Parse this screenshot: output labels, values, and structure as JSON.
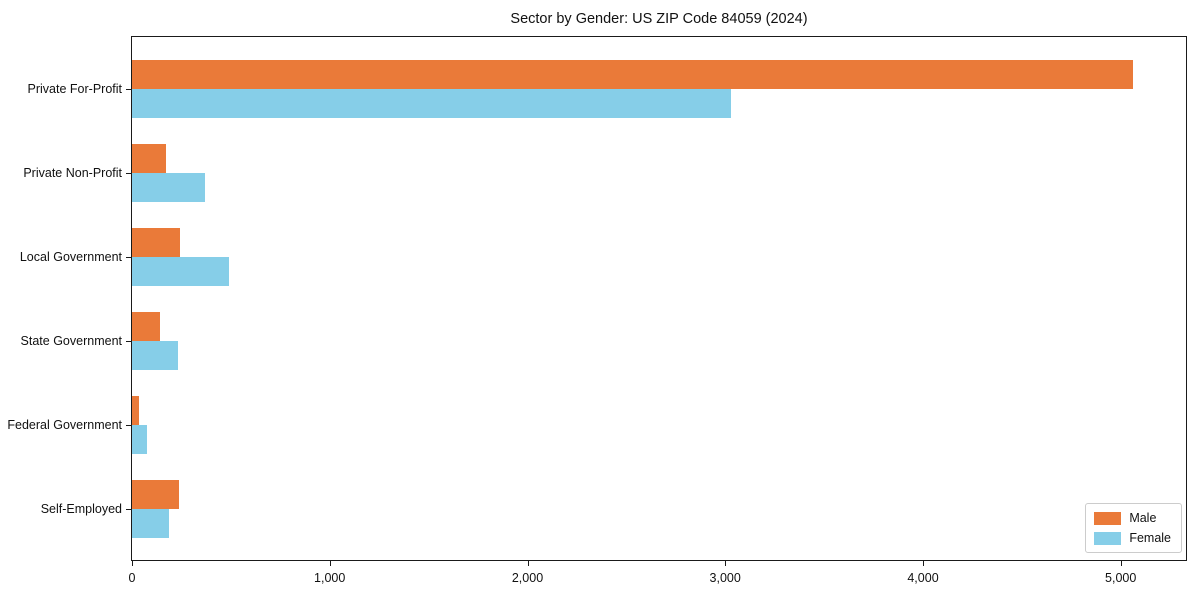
{
  "figure": {
    "background": "#ffffff",
    "plot_border_color": "#1a1a1a"
  },
  "chart_data": {
    "type": "bar",
    "orientation": "horizontal",
    "title": "Sector by Gender: US ZIP Code 84059 (2024)",
    "categories": [
      "Private For-Profit",
      "Private Non-Profit",
      "Local Government",
      "State Government",
      "Federal Government",
      "Self-Employed"
    ],
    "series": [
      {
        "name": "Male",
        "color": "#ea7a39",
        "values": [
          5060,
          170,
          245,
          140,
          35,
          235
        ]
      },
      {
        "name": "Female",
        "color": "#86cee8",
        "values": [
          3030,
          370,
          490,
          230,
          75,
          185
        ]
      }
    ],
    "x_ticks": [
      0,
      1000,
      2000,
      3000,
      4000,
      5000
    ],
    "x_tick_labels": [
      "0",
      "1,000",
      "2,000",
      "3,000",
      "4,000",
      "5,000"
    ],
    "xlim": [
      0,
      5330
    ],
    "xlabel": "",
    "ylabel": "",
    "grid": false,
    "legend": {
      "position": "lower-right"
    }
  }
}
